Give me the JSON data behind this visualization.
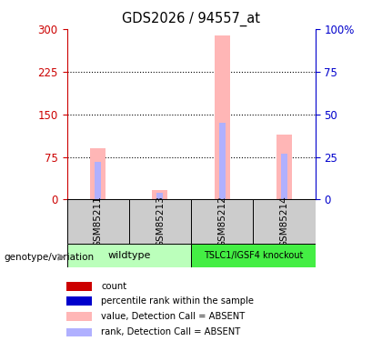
{
  "title": "GDS2026 / 94557_at",
  "samples": [
    "GSM85211",
    "GSM85213",
    "GSM85212",
    "GSM85214"
  ],
  "value_absent": [
    90,
    17,
    288,
    115
  ],
  "rank_absent": [
    22,
    4,
    45,
    27
  ],
  "ylim_left": [
    0,
    300
  ],
  "ylim_right": [
    0,
    100
  ],
  "yticks_left": [
    0,
    75,
    150,
    225,
    300
  ],
  "yticks_right": [
    0,
    25,
    50,
    75,
    100
  ],
  "color_value_absent": "#ffb6b6",
  "color_rank_absent": "#b0b0ff",
  "left_tick_color": "#cc0000",
  "right_tick_color": "#0000cc",
  "bar_width": 0.25,
  "rank_bar_width": 0.1,
  "legend_items": [
    {
      "label": "count",
      "color": "#cc0000"
    },
    {
      "label": "percentile rank within the sample",
      "color": "#0000cc"
    },
    {
      "label": "value, Detection Call = ABSENT",
      "color": "#ffb6b6"
    },
    {
      "label": "rank, Detection Call = ABSENT",
      "color": "#b0b0ff"
    }
  ],
  "genotype_label": "genotype/variation",
  "wildtype_color": "#bbffbb",
  "knockout_color": "#44ee44",
  "sample_box_color": "#cccccc",
  "wt_label": "wildtype",
  "ko_label": "TSLC1/IGSF4 knockout"
}
